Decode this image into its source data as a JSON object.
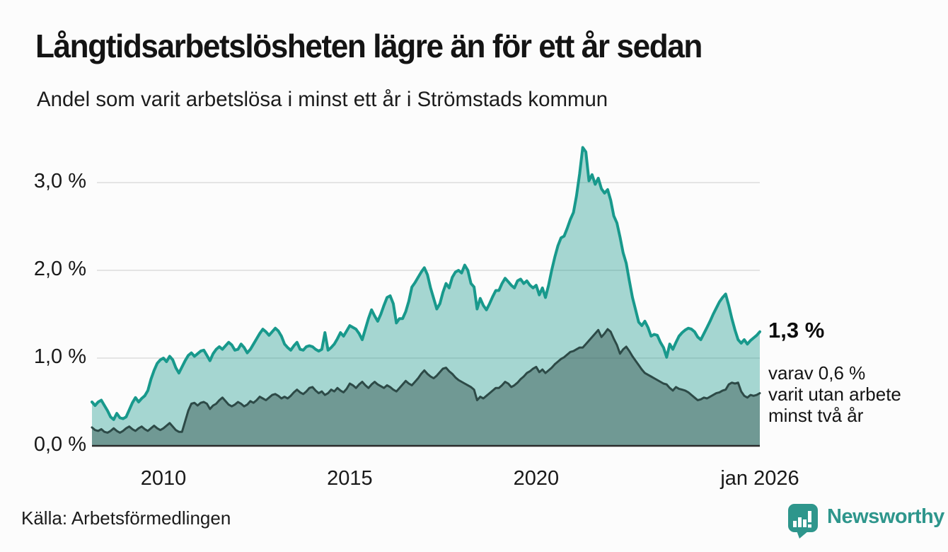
{
  "header": {
    "title": "Långtidsarbetslösheten lägre än för ett år sedan",
    "subtitle": "Andel som varit arbetslösa i minst ett år i Strömstads kommun"
  },
  "chart_data": {
    "type": "area",
    "title": "Långtidsarbetslösheten lägre än för ett år sedan",
    "xlabel": "",
    "ylabel": "",
    "unit": "%",
    "frequency": "monthly",
    "x_start": "2008-02",
    "x_end": "2026-01",
    "ylim": [
      0,
      3.55
    ],
    "grid": "horizontal",
    "legend_position": "none",
    "y_ticks": [
      {
        "label": "0,0 %",
        "value": 0
      },
      {
        "label": "1,0 %",
        "value": 1
      },
      {
        "label": "2,0 %",
        "value": 2
      },
      {
        "label": "3,0 %",
        "value": 3
      }
    ],
    "x_ticks": [
      {
        "label": "2010",
        "index": 23
      },
      {
        "label": "2015",
        "index": 83
      },
      {
        "label": "2020",
        "index": 143
      },
      {
        "label": "jan 2026",
        "index": 215
      }
    ],
    "series": [
      {
        "name": "Arbetslösa minst ett år",
        "color": "#18998c",
        "fill_opacity": 0.38,
        "line_width": 4,
        "values": [
          0.5,
          0.46,
          0.5,
          0.52,
          0.46,
          0.4,
          0.33,
          0.3,
          0.37,
          0.32,
          0.31,
          0.33,
          0.41,
          0.49,
          0.55,
          0.5,
          0.54,
          0.57,
          0.63,
          0.76,
          0.86,
          0.94,
          0.98,
          1.0,
          0.96,
          1.02,
          0.98,
          0.89,
          0.83,
          0.9,
          0.97,
          1.03,
          1.06,
          1.02,
          1.05,
          1.08,
          1.09,
          1.03,
          0.97,
          1.05,
          1.1,
          1.13,
          1.1,
          1.14,
          1.18,
          1.15,
          1.09,
          1.1,
          1.16,
          1.12,
          1.06,
          1.1,
          1.16,
          1.22,
          1.28,
          1.33,
          1.3,
          1.26,
          1.3,
          1.34,
          1.31,
          1.25,
          1.16,
          1.12,
          1.09,
          1.14,
          1.18,
          1.1,
          1.09,
          1.13,
          1.14,
          1.13,
          1.1,
          1.08,
          1.1,
          1.29,
          1.09,
          1.12,
          1.16,
          1.22,
          1.29,
          1.25,
          1.31,
          1.37,
          1.35,
          1.33,
          1.28,
          1.21,
          1.33,
          1.45,
          1.55,
          1.48,
          1.42,
          1.5,
          1.6,
          1.69,
          1.71,
          1.62,
          1.4,
          1.45,
          1.45,
          1.53,
          1.65,
          1.81,
          1.86,
          1.92,
          1.98,
          2.03,
          1.95,
          1.8,
          1.68,
          1.56,
          1.62,
          1.75,
          1.85,
          1.8,
          1.92,
          1.98,
          2.0,
          1.97,
          2.06,
          2.0,
          1.85,
          1.81,
          1.56,
          1.68,
          1.6,
          1.55,
          1.62,
          1.7,
          1.77,
          1.77,
          1.85,
          1.91,
          1.87,
          1.83,
          1.8,
          1.88,
          1.9,
          1.85,
          1.88,
          1.83,
          1.8,
          1.83,
          1.72,
          1.8,
          1.69,
          1.83,
          2.0,
          2.15,
          2.28,
          2.37,
          2.39,
          2.48,
          2.58,
          2.66,
          2.85,
          3.1,
          3.4,
          3.35,
          3.02,
          3.09,
          2.98,
          3.05,
          2.93,
          2.88,
          2.92,
          2.8,
          2.62,
          2.54,
          2.38,
          2.2,
          2.08,
          1.88,
          1.69,
          1.55,
          1.41,
          1.37,
          1.42,
          1.35,
          1.25,
          1.27,
          1.26,
          1.18,
          1.12,
          1.01,
          1.16,
          1.1,
          1.18,
          1.25,
          1.29,
          1.32,
          1.34,
          1.33,
          1.3,
          1.24,
          1.21,
          1.28,
          1.35,
          1.42,
          1.5,
          1.57,
          1.64,
          1.69,
          1.73,
          1.6,
          1.45,
          1.32,
          1.21,
          1.17,
          1.21,
          1.16,
          1.2,
          1.23,
          1.26,
          1.3
        ]
      },
      {
        "name": "Arbetslösa minst två år",
        "color": "#2d4a47",
        "fill_opacity": 0.44,
        "line_width": 3,
        "values": [
          0.21,
          0.18,
          0.17,
          0.19,
          0.16,
          0.15,
          0.17,
          0.2,
          0.17,
          0.15,
          0.17,
          0.2,
          0.22,
          0.19,
          0.17,
          0.2,
          0.22,
          0.19,
          0.17,
          0.2,
          0.23,
          0.2,
          0.18,
          0.2,
          0.23,
          0.26,
          0.22,
          0.18,
          0.16,
          0.16,
          0.28,
          0.4,
          0.48,
          0.49,
          0.46,
          0.49,
          0.5,
          0.48,
          0.42,
          0.46,
          0.48,
          0.52,
          0.55,
          0.51,
          0.47,
          0.45,
          0.47,
          0.5,
          0.48,
          0.45,
          0.47,
          0.51,
          0.49,
          0.52,
          0.56,
          0.54,
          0.52,
          0.55,
          0.58,
          0.59,
          0.57,
          0.54,
          0.56,
          0.54,
          0.57,
          0.61,
          0.64,
          0.61,
          0.59,
          0.62,
          0.66,
          0.67,
          0.63,
          0.6,
          0.62,
          0.58,
          0.6,
          0.64,
          0.62,
          0.66,
          0.63,
          0.61,
          0.65,
          0.71,
          0.69,
          0.66,
          0.7,
          0.73,
          0.69,
          0.66,
          0.7,
          0.73,
          0.7,
          0.68,
          0.66,
          0.69,
          0.67,
          0.64,
          0.62,
          0.66,
          0.7,
          0.74,
          0.71,
          0.69,
          0.73,
          0.77,
          0.82,
          0.86,
          0.82,
          0.79,
          0.77,
          0.8,
          0.84,
          0.88,
          0.89,
          0.85,
          0.82,
          0.78,
          0.75,
          0.73,
          0.71,
          0.69,
          0.67,
          0.64,
          0.52,
          0.56,
          0.54,
          0.57,
          0.6,
          0.63,
          0.66,
          0.66,
          0.69,
          0.73,
          0.71,
          0.67,
          0.69,
          0.72,
          0.76,
          0.79,
          0.83,
          0.85,
          0.88,
          0.9,
          0.84,
          0.87,
          0.83,
          0.86,
          0.89,
          0.93,
          0.96,
          0.99,
          1.01,
          1.04,
          1.07,
          1.08,
          1.1,
          1.12,
          1.12,
          1.16,
          1.2,
          1.24,
          1.28,
          1.32,
          1.24,
          1.28,
          1.33,
          1.3,
          1.22,
          1.15,
          1.05,
          1.1,
          1.13,
          1.08,
          1.02,
          0.97,
          0.92,
          0.87,
          0.83,
          0.81,
          0.79,
          0.77,
          0.75,
          0.73,
          0.71,
          0.7,
          0.66,
          0.63,
          0.67,
          0.65,
          0.64,
          0.63,
          0.61,
          0.58,
          0.55,
          0.52,
          0.53,
          0.55,
          0.54,
          0.56,
          0.58,
          0.6,
          0.61,
          0.63,
          0.64,
          0.7,
          0.72,
          0.71,
          0.72,
          0.62,
          0.57,
          0.55,
          0.58,
          0.57,
          0.58,
          0.6
        ]
      }
    ]
  },
  "annotations": {
    "latest_total": "1,3 %",
    "note_lines": [
      "varav 0,6 %",
      "varit utan arbete",
      "minst två år"
    ]
  },
  "footer": {
    "source": "Källa: Arbetsförmedlingen",
    "brand": "Newsworthy"
  },
  "colors": {
    "accent_teal": "#18998c",
    "dark_teal": "#2d4a47",
    "brand_teal": "#2e968c",
    "gridline": "#e4e4e4",
    "baseline": "#2b2b2b",
    "text": "#171717",
    "background": "#fcfcfc"
  }
}
